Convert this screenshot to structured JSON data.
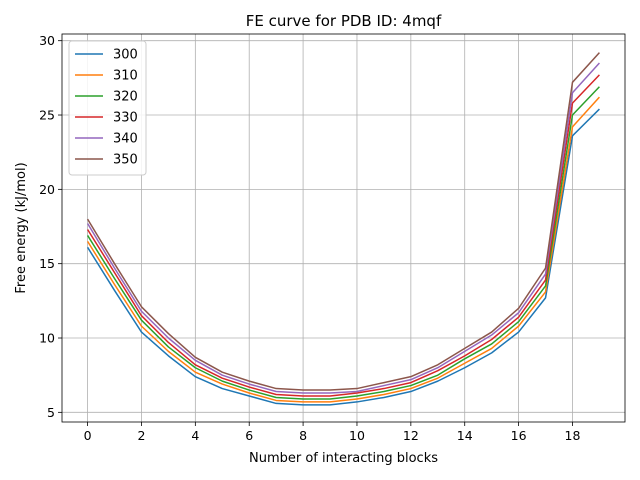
{
  "chart_data": {
    "type": "line",
    "title": "FE curve for PDB ID: 4mqf",
    "xlabel": "Number of interacting blocks",
    "ylabel": "Free energy (kJ/mol)",
    "xlim": [
      -0.95,
      19.95
    ],
    "ylim": [
      4.35,
      30.45
    ],
    "xticks": [
      0,
      2,
      4,
      6,
      8,
      10,
      12,
      14,
      16,
      18
    ],
    "yticks": [
      5,
      10,
      15,
      20,
      25,
      30
    ],
    "grid": true,
    "legend_position": "upper-left",
    "x": [
      0,
      1,
      2,
      3,
      4,
      5,
      6,
      7,
      8,
      9,
      10,
      11,
      12,
      13,
      14,
      15,
      16,
      17,
      18,
      19
    ],
    "series": [
      {
        "name": "300",
        "color": "#1f77b4",
        "values": [
          16.1,
          13.2,
          10.4,
          8.8,
          7.4,
          6.6,
          6.1,
          5.6,
          5.5,
          5.5,
          5.7,
          6.0,
          6.4,
          7.1,
          8.0,
          9.0,
          10.4,
          12.7,
          23.6,
          25.4
        ]
      },
      {
        "name": "310",
        "color": "#ff7f0e",
        "values": [
          16.5,
          13.6,
          10.8,
          9.1,
          7.7,
          6.9,
          6.3,
          5.8,
          5.7,
          5.7,
          5.9,
          6.2,
          6.6,
          7.3,
          8.3,
          9.3,
          10.8,
          13.1,
          24.2,
          26.2
        ]
      },
      {
        "name": "320",
        "color": "#2ca02c",
        "values": [
          16.9,
          14.0,
          11.2,
          9.4,
          8.0,
          7.1,
          6.5,
          6.0,
          5.9,
          5.9,
          6.1,
          6.4,
          6.8,
          7.5,
          8.6,
          9.6,
          11.1,
          13.5,
          25.0,
          26.9
        ]
      },
      {
        "name": "330",
        "color": "#d62728",
        "values": [
          17.3,
          14.4,
          11.5,
          9.7,
          8.2,
          7.3,
          6.7,
          6.2,
          6.1,
          6.1,
          6.3,
          6.6,
          7.0,
          7.8,
          8.8,
          9.9,
          11.4,
          13.9,
          25.8,
          27.7
        ]
      },
      {
        "name": "340",
        "color": "#9467bd",
        "values": [
          17.7,
          14.7,
          11.8,
          10.0,
          8.5,
          7.5,
          6.9,
          6.4,
          6.3,
          6.3,
          6.4,
          6.8,
          7.2,
          8.0,
          9.1,
          10.2,
          11.7,
          14.3,
          26.5,
          28.5
        ]
      },
      {
        "name": "350",
        "color": "#8c564b",
        "values": [
          18.0,
          15.0,
          12.1,
          10.3,
          8.7,
          7.7,
          7.1,
          6.6,
          6.5,
          6.5,
          6.6,
          7.0,
          7.4,
          8.2,
          9.3,
          10.4,
          12.0,
          14.7,
          27.2,
          29.2
        ]
      }
    ]
  }
}
